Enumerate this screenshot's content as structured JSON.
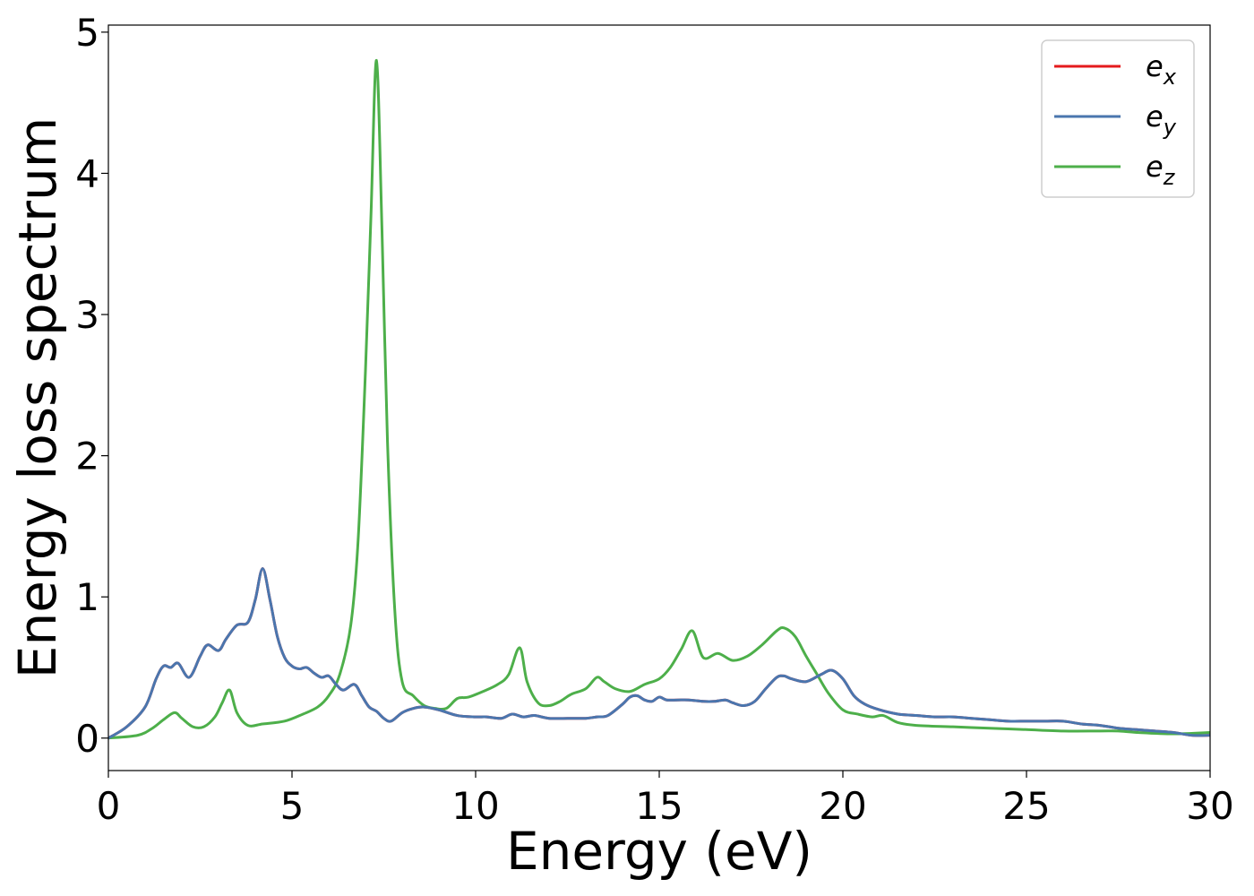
{
  "chart_data": {
    "type": "line",
    "title": "",
    "xlabel": "Energy (eV)",
    "ylabel": "Energy loss spectrum",
    "xlim": [
      0,
      30
    ],
    "ylim": [
      -0.23,
      5.05
    ],
    "xticks": [
      0,
      5,
      10,
      15,
      20,
      25,
      30
    ],
    "yticks": [
      0,
      1,
      2,
      3,
      4,
      5
    ],
    "grid": false,
    "legend_position": "top-right",
    "series": [
      {
        "name_base": "e",
        "name_sub": "x",
        "color": "#e41a1c",
        "x": [
          0,
          0.5,
          1.0,
          1.3,
          1.5,
          1.7,
          1.9,
          2.2,
          2.5,
          2.7,
          3.0,
          3.2,
          3.5,
          3.8,
          4.0,
          4.2,
          4.4,
          4.6,
          4.8,
          5.0,
          5.2,
          5.4,
          5.6,
          5.8,
          6.0,
          6.2,
          6.4,
          6.7,
          6.9,
          7.1,
          7.3,
          7.5,
          7.7,
          8.0,
          8.3,
          8.6,
          9.0,
          9.5,
          10.0,
          10.3,
          10.7,
          11.0,
          11.3,
          11.6,
          12.0,
          12.5,
          13.0,
          13.3,
          13.6,
          14.0,
          14.2,
          14.4,
          14.6,
          14.8,
          15.0,
          15.2,
          15.5,
          15.8,
          16.2,
          16.5,
          16.8,
          17.0,
          17.3,
          17.6,
          17.9,
          18.2,
          18.4,
          18.6,
          19.0,
          19.4,
          19.7,
          20.0,
          20.3,
          20.6,
          21.0,
          21.5,
          22.0,
          22.5,
          23.0,
          23.5,
          24.0,
          24.5,
          25.0,
          25.5,
          26.0,
          26.5,
          27.0,
          27.5,
          28.0,
          28.5,
          29.0,
          29.5,
          30.0
        ],
        "y": [
          0.0,
          0.08,
          0.22,
          0.42,
          0.51,
          0.5,
          0.53,
          0.43,
          0.58,
          0.66,
          0.62,
          0.7,
          0.8,
          0.82,
          0.98,
          1.2,
          0.98,
          0.72,
          0.57,
          0.51,
          0.49,
          0.5,
          0.46,
          0.43,
          0.44,
          0.38,
          0.34,
          0.38,
          0.3,
          0.22,
          0.19,
          0.14,
          0.12,
          0.18,
          0.21,
          0.22,
          0.2,
          0.16,
          0.15,
          0.15,
          0.14,
          0.17,
          0.15,
          0.16,
          0.14,
          0.14,
          0.14,
          0.15,
          0.16,
          0.24,
          0.29,
          0.3,
          0.27,
          0.26,
          0.29,
          0.27,
          0.27,
          0.27,
          0.26,
          0.26,
          0.27,
          0.25,
          0.23,
          0.26,
          0.35,
          0.43,
          0.44,
          0.42,
          0.4,
          0.45,
          0.48,
          0.42,
          0.3,
          0.24,
          0.2,
          0.17,
          0.16,
          0.15,
          0.15,
          0.14,
          0.13,
          0.12,
          0.12,
          0.12,
          0.12,
          0.1,
          0.09,
          0.07,
          0.06,
          0.05,
          0.04,
          0.02,
          0.02
        ]
      },
      {
        "name_base": "e",
        "name_sub": "y",
        "color": "#4a76ae",
        "x": [
          0,
          0.5,
          1.0,
          1.3,
          1.5,
          1.7,
          1.9,
          2.2,
          2.5,
          2.7,
          3.0,
          3.2,
          3.5,
          3.8,
          4.0,
          4.2,
          4.4,
          4.6,
          4.8,
          5.0,
          5.2,
          5.4,
          5.6,
          5.8,
          6.0,
          6.2,
          6.4,
          6.7,
          6.9,
          7.1,
          7.3,
          7.5,
          7.7,
          8.0,
          8.3,
          8.6,
          9.0,
          9.5,
          10.0,
          10.3,
          10.7,
          11.0,
          11.3,
          11.6,
          12.0,
          12.5,
          13.0,
          13.3,
          13.6,
          14.0,
          14.2,
          14.4,
          14.6,
          14.8,
          15.0,
          15.2,
          15.5,
          15.8,
          16.2,
          16.5,
          16.8,
          17.0,
          17.3,
          17.6,
          17.9,
          18.2,
          18.4,
          18.6,
          19.0,
          19.4,
          19.7,
          20.0,
          20.3,
          20.6,
          21.0,
          21.5,
          22.0,
          22.5,
          23.0,
          23.5,
          24.0,
          24.5,
          25.0,
          25.5,
          26.0,
          26.5,
          27.0,
          27.5,
          28.0,
          28.5,
          29.0,
          29.5,
          30.0
        ],
        "y": [
          0.0,
          0.08,
          0.22,
          0.42,
          0.51,
          0.5,
          0.53,
          0.43,
          0.58,
          0.66,
          0.62,
          0.7,
          0.8,
          0.82,
          0.98,
          1.2,
          0.98,
          0.72,
          0.57,
          0.51,
          0.49,
          0.5,
          0.46,
          0.43,
          0.44,
          0.38,
          0.34,
          0.38,
          0.3,
          0.22,
          0.19,
          0.14,
          0.12,
          0.18,
          0.21,
          0.22,
          0.2,
          0.16,
          0.15,
          0.15,
          0.14,
          0.17,
          0.15,
          0.16,
          0.14,
          0.14,
          0.14,
          0.15,
          0.16,
          0.24,
          0.29,
          0.3,
          0.27,
          0.26,
          0.29,
          0.27,
          0.27,
          0.27,
          0.26,
          0.26,
          0.27,
          0.25,
          0.23,
          0.26,
          0.35,
          0.43,
          0.44,
          0.42,
          0.4,
          0.45,
          0.48,
          0.42,
          0.3,
          0.24,
          0.2,
          0.17,
          0.16,
          0.15,
          0.15,
          0.14,
          0.13,
          0.12,
          0.12,
          0.12,
          0.12,
          0.1,
          0.09,
          0.07,
          0.06,
          0.05,
          0.04,
          0.02,
          0.02
        ]
      },
      {
        "name_base": "e",
        "name_sub": "z",
        "color": "#4daf4a",
        "x": [
          0,
          0.8,
          1.2,
          1.5,
          1.8,
          2.0,
          2.3,
          2.6,
          2.9,
          3.1,
          3.3,
          3.5,
          3.8,
          4.2,
          4.8,
          5.3,
          5.7,
          6.0,
          6.3,
          6.6,
          6.8,
          7.0,
          7.15,
          7.3,
          7.45,
          7.6,
          7.8,
          8.0,
          8.3,
          8.6,
          8.9,
          9.2,
          9.5,
          9.8,
          10.2,
          10.6,
          10.9,
          11.2,
          11.4,
          11.7,
          12.0,
          12.3,
          12.6,
          13.0,
          13.3,
          13.5,
          13.8,
          14.2,
          14.6,
          15.0,
          15.3,
          15.6,
          15.9,
          16.2,
          16.6,
          17.0,
          17.4,
          17.8,
          18.2,
          18.4,
          18.7,
          19.0,
          19.3,
          19.6,
          20.0,
          20.4,
          20.8,
          21.1,
          21.5,
          22.0,
          23.0,
          24.0,
          25.0,
          26.0,
          27.0,
          27.5,
          28.0,
          29.0,
          30.0
        ],
        "y": [
          0.0,
          0.02,
          0.07,
          0.13,
          0.18,
          0.14,
          0.08,
          0.08,
          0.15,
          0.25,
          0.34,
          0.18,
          0.09,
          0.1,
          0.12,
          0.17,
          0.22,
          0.3,
          0.45,
          0.8,
          1.4,
          2.6,
          3.7,
          4.8,
          3.6,
          2.1,
          0.9,
          0.4,
          0.3,
          0.23,
          0.21,
          0.21,
          0.28,
          0.29,
          0.33,
          0.38,
          0.45,
          0.64,
          0.4,
          0.25,
          0.23,
          0.26,
          0.31,
          0.35,
          0.43,
          0.4,
          0.35,
          0.33,
          0.38,
          0.42,
          0.5,
          0.63,
          0.76,
          0.57,
          0.6,
          0.55,
          0.58,
          0.66,
          0.76,
          0.78,
          0.72,
          0.58,
          0.45,
          0.32,
          0.2,
          0.17,
          0.15,
          0.16,
          0.11,
          0.09,
          0.08,
          0.07,
          0.06,
          0.05,
          0.05,
          0.05,
          0.04,
          0.03,
          0.04
        ]
      }
    ]
  }
}
